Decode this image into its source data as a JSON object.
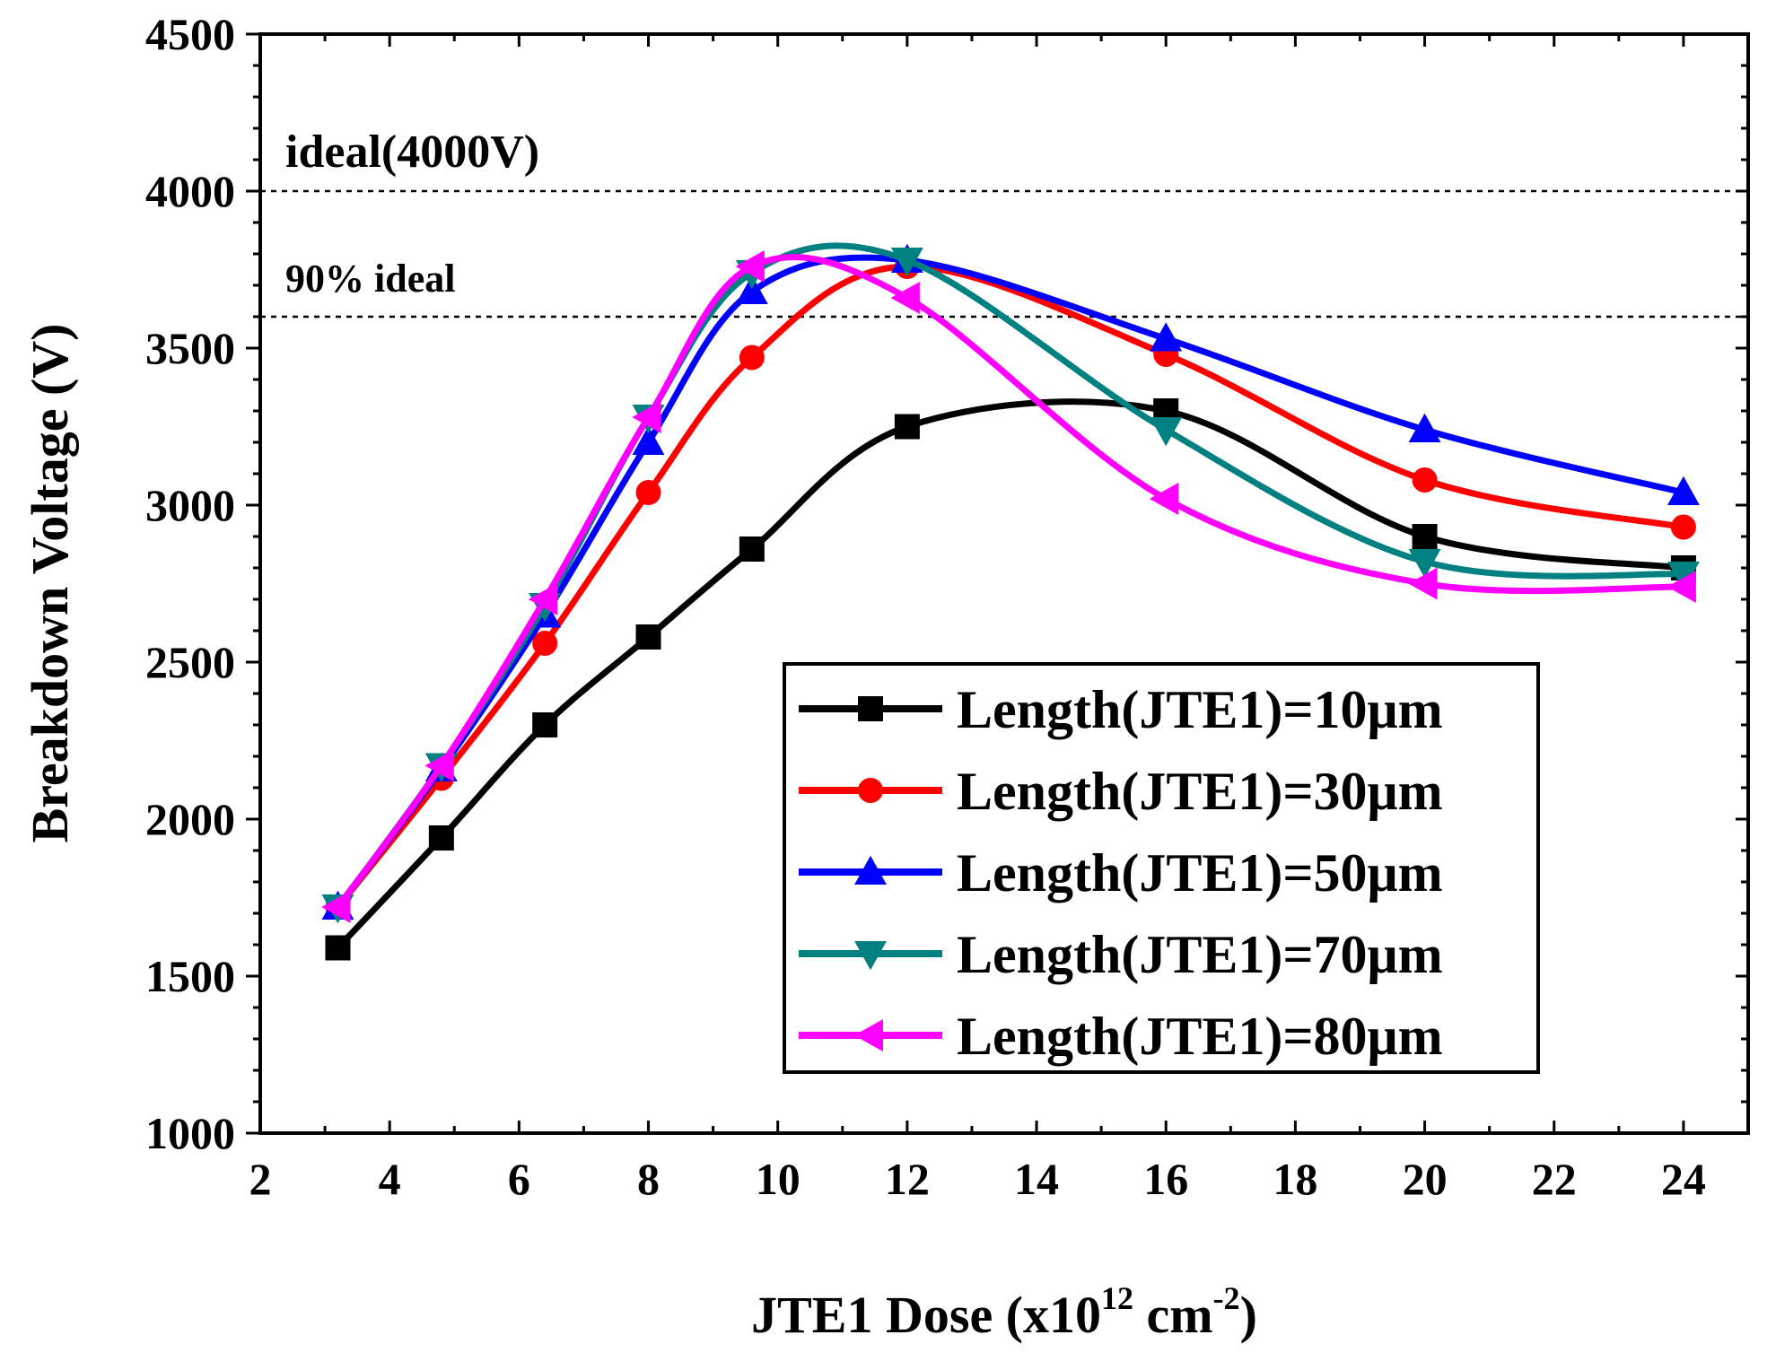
{
  "chart_data": {
    "type": "line",
    "title": "",
    "xlabel": "JTE1 Dose (x10",
    "xlabel_sup1": "12",
    "xlabel_mid": " cm",
    "xlabel_sup2": "-2",
    "xlabel_end": ")",
    "ylabel": "Breakdown Voltage (V)",
    "xlim": [
      2,
      25
    ],
    "ylim": [
      1000,
      4500
    ],
    "x_ticks": [
      2,
      4,
      6,
      8,
      10,
      12,
      14,
      16,
      18,
      20,
      22,
      24
    ],
    "x_tick_labels": [
      "2",
      "4",
      "6",
      "8",
      "10",
      "12",
      "14",
      "16",
      "18",
      "20",
      "22",
      "24"
    ],
    "y_ticks": [
      1000,
      1500,
      2000,
      2500,
      3000,
      3500,
      4000,
      4500
    ],
    "y_tick_labels": [
      "1000",
      "1500",
      "2000",
      "2500",
      "3000",
      "3500",
      "4000",
      "4500"
    ],
    "x": [
      3.2,
      4.8,
      6.4,
      8,
      9.6,
      12,
      16,
      20,
      24
    ],
    "reference_lines": [
      {
        "y": 4000,
        "label": "ideal(4000V)"
      },
      {
        "y": 3600,
        "label": "90% ideal"
      }
    ],
    "series": [
      {
        "name": "Length(JTE1)=10μm",
        "color": "#000000",
        "marker": "square",
        "values": [
          1590,
          1940,
          2300,
          2580,
          2860,
          3250,
          3300,
          2900,
          2800
        ]
      },
      {
        "name": "Length(JTE1)=30μm",
        "color": "#ff0000",
        "marker": "circle",
        "values": [
          1720,
          2130,
          2560,
          3040,
          3470,
          3760,
          3480,
          3080,
          2930
        ]
      },
      {
        "name": "Length(JTE1)=50μm",
        "color": "#0000ff",
        "marker": "triangle-up",
        "values": [
          1720,
          2160,
          2650,
          3200,
          3680,
          3780,
          3530,
          3240,
          3040
        ]
      },
      {
        "name": "Length(JTE1)=70μm",
        "color": "#008080",
        "marker": "triangle-down",
        "values": [
          1720,
          2170,
          2680,
          3280,
          3740,
          3780,
          3240,
          2820,
          2780
        ]
      },
      {
        "name": "Length(JTE1)=80μm",
        "color": "#ff00ff",
        "marker": "triangle-left",
        "values": [
          1720,
          2170,
          2700,
          3280,
          3760,
          3660,
          3020,
          2750,
          2740
        ]
      }
    ]
  }
}
